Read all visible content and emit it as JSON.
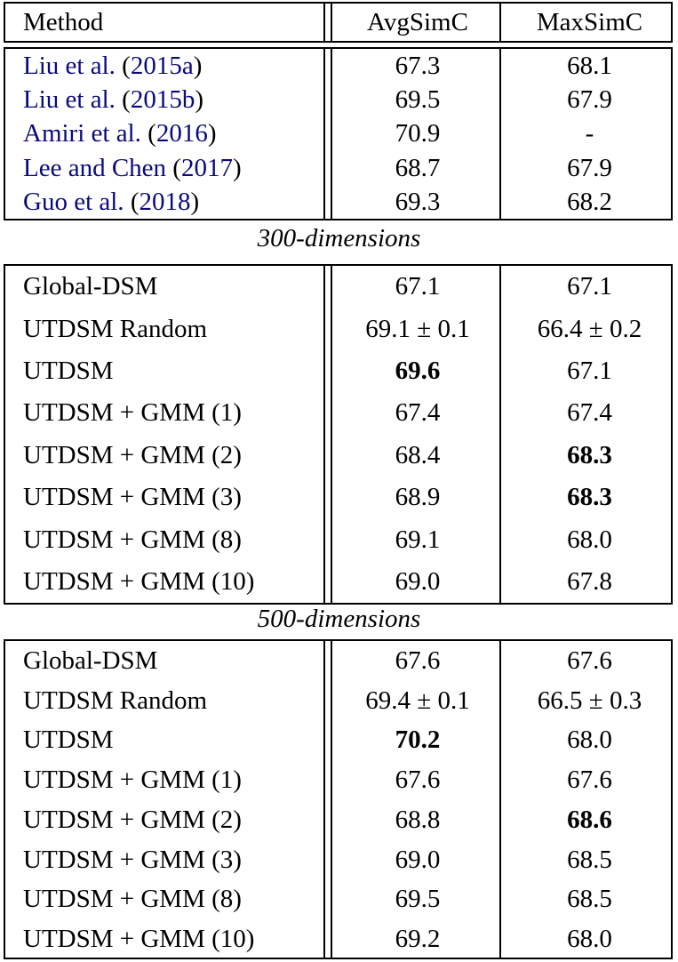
{
  "header": {
    "method": "Method",
    "avg": "AvgSimC",
    "max": "MaxSimC"
  },
  "colors": {
    "citation": "#0a0a7d"
  },
  "baselines": [
    {
      "author": "Liu et al.",
      "year": "2015a",
      "avg": "67.3",
      "max": "68.1"
    },
    {
      "author": "Liu et al.",
      "year": "2015b",
      "avg": "69.5",
      "max": "67.9"
    },
    {
      "author": "Amiri et al.",
      "year": "2016",
      "avg": "70.9",
      "max": "-"
    },
    {
      "author": "Lee and Chen",
      "year": "2017",
      "avg": "68.7",
      "max": "67.9"
    },
    {
      "author": "Guo et al.",
      "year": "2018",
      "avg": "69.3",
      "max": "68.2"
    }
  ],
  "sections": [
    {
      "label": "300-dimensions",
      "rows": [
        {
          "method": "Global-DSM",
          "avg": "67.1",
          "max": "67.1"
        },
        {
          "method": "UTDSM Random",
          "avg": "69.1 ± 0.1",
          "max": "66.4 ± 0.2"
        },
        {
          "method": "UTDSM",
          "avg": "69.6",
          "max": "67.1",
          "avg_bold": true
        },
        {
          "method": "UTDSM + GMM (1)",
          "avg": "67.4",
          "max": "67.4"
        },
        {
          "method": "UTDSM + GMM (2)",
          "avg": "68.4",
          "max": "68.3",
          "max_bold": true
        },
        {
          "method": "UTDSM + GMM (3)",
          "avg": "68.9",
          "max": "68.3",
          "max_bold": true
        },
        {
          "method": "UTDSM + GMM (8)",
          "avg": "69.1",
          "max": "68.0"
        },
        {
          "method": "UTDSM + GMM (10)",
          "avg": "69.0",
          "max": "67.8"
        }
      ]
    },
    {
      "label": "500-dimensions",
      "rows": [
        {
          "method": "Global-DSM",
          "avg": "67.6",
          "max": "67.6"
        },
        {
          "method": "UTDSM Random",
          "avg": "69.4 ± 0.1",
          "max": "66.5 ± 0.3"
        },
        {
          "method": "UTDSM",
          "avg": "70.2",
          "max": "68.0",
          "avg_bold": true
        },
        {
          "method": "UTDSM + GMM (1)",
          "avg": "67.6",
          "max": "67.6"
        },
        {
          "method": "UTDSM + GMM (2)",
          "avg": "68.8",
          "max": "68.6",
          "max_bold": true
        },
        {
          "method": "UTDSM + GMM (3)",
          "avg": "69.0",
          "max": "68.5"
        },
        {
          "method": "UTDSM + GMM (8)",
          "avg": "69.5",
          "max": "68.5"
        },
        {
          "method": "UTDSM + GMM (10)",
          "avg": "69.2",
          "max": "68.0"
        }
      ]
    }
  ]
}
